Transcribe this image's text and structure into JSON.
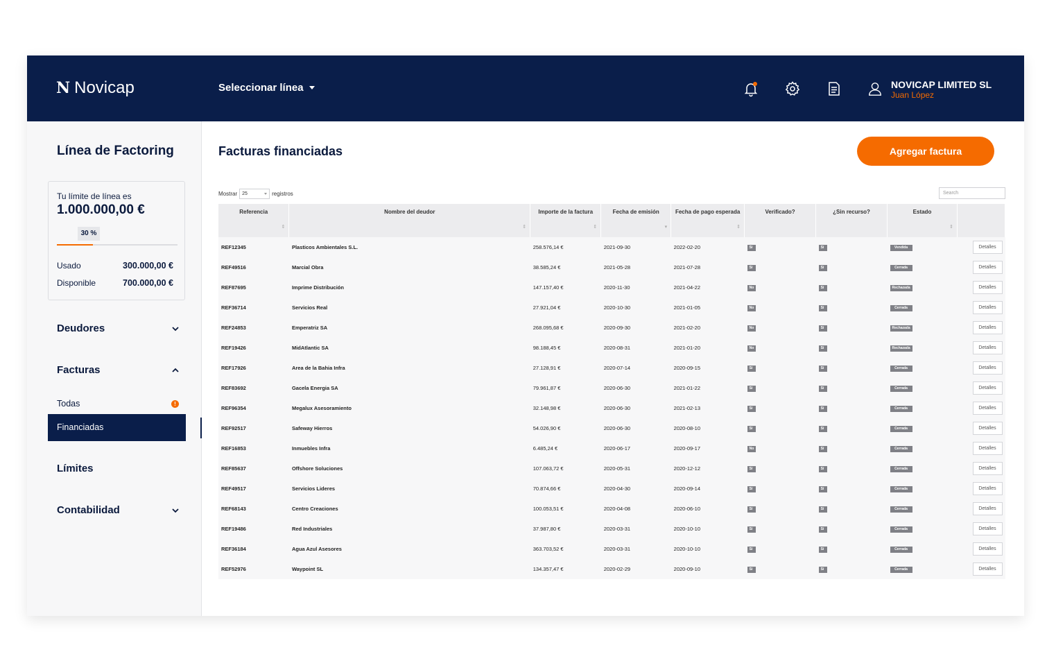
{
  "topbar": {
    "logo": "Novicap",
    "logo_mark": "N",
    "line_selector": "Seleccionar línea",
    "company": "NOVICAP LIMITED SL",
    "user_name": "Juan López"
  },
  "sidebar": {
    "title": "Línea de Factoring",
    "limit_label": "Tu límite de línea es",
    "limit_amount": "1.000.000,00 €",
    "usage_percent_label": "30 %",
    "usage_fraction": 0.3,
    "used_label": "Usado",
    "used_value": "300.000,00 €",
    "available_label": "Disponible",
    "available_value": "700.000,00 €",
    "nav": {
      "deudores": "Deudores",
      "facturas": "Facturas",
      "todas": "Todas",
      "todas_badge": "!",
      "financiadas": "Financiadas",
      "limites": "Límites",
      "contabilidad": "Contabilidad"
    }
  },
  "main": {
    "title": "Facturas financiadas",
    "add_button": "Agregar factura",
    "show_prefix": "Mostrar",
    "show_value": "25",
    "show_suffix": "registros",
    "search_placeholder": "Search",
    "columns": [
      "Referencia",
      "Nombre del deudor",
      "Importe de la factura",
      "Fecha de emisión",
      "Fecha de pago esperada",
      "Verificado?",
      "¿Sin recurso?",
      "Estado",
      ""
    ],
    "details_label": "Detalles",
    "rows": [
      {
        "ref": "REF12345",
        "deudor": "Plasticos Ambientales S.L.",
        "importe": "258.576,14 €",
        "emision": "2021-09-30",
        "pago": "2022-02-20",
        "verificado": "Sí",
        "recurso": "Sí",
        "estado": "Vendida"
      },
      {
        "ref": "REF49516",
        "deudor": "Marcial Obra",
        "importe": "38.585,24 €",
        "emision": "2021-05-28",
        "pago": "2021-07-28",
        "verificado": "Sí",
        "recurso": "Sí",
        "estado": "Cerrada"
      },
      {
        "ref": "REF87695",
        "deudor": "Imprime Distribución",
        "importe": "147.157,40 €",
        "emision": "2020-11-30",
        "pago": "2021-04-22",
        "verificado": "No",
        "recurso": "Sí",
        "estado": "Rechazada"
      },
      {
        "ref": "REF36714",
        "deudor": "Servicios Real",
        "importe": "27.921,04 €",
        "emision": "2020-10-30",
        "pago": "2021-01-05",
        "verificado": "No",
        "recurso": "Sí",
        "estado": "Cerrada"
      },
      {
        "ref": "REF24853",
        "deudor": "Emperatriz SA",
        "importe": "268.095,68 €",
        "emision": "2020-09-30",
        "pago": "2021-02-20",
        "verificado": "No",
        "recurso": "Sí",
        "estado": "Rechazada"
      },
      {
        "ref": "REF19426",
        "deudor": "MidAtlantic SA",
        "importe": "98.188,45 €",
        "emision": "2020-08-31",
        "pago": "2021-01-20",
        "verificado": "No",
        "recurso": "Sí",
        "estado": "Rechazada"
      },
      {
        "ref": "REF17926",
        "deudor": "Area de la Bahia Infra",
        "importe": "27.128,91 €",
        "emision": "2020-07-14",
        "pago": "2020-09-15",
        "verificado": "Sí",
        "recurso": "Sí",
        "estado": "Cerrada"
      },
      {
        "ref": "REF83692",
        "deudor": "Gacela Energia SA",
        "importe": "79.961,87 €",
        "emision": "2020-06-30",
        "pago": "2021-01-22",
        "verificado": "Sí",
        "recurso": "Sí",
        "estado": "Cerrada"
      },
      {
        "ref": "REF96354",
        "deudor": "Megalux Asesoramiento",
        "importe": "32.148,98 €",
        "emision": "2020-06-30",
        "pago": "2021-02-13",
        "verificado": "Sí",
        "recurso": "Sí",
        "estado": "Cerrada"
      },
      {
        "ref": "REF92517",
        "deudor": "Safeway Hierros",
        "importe": "54.026,90 €",
        "emision": "2020-06-30",
        "pago": "2020-08-10",
        "verificado": "Sí",
        "recurso": "Sí",
        "estado": "Cerrada"
      },
      {
        "ref": "REF16853",
        "deudor": "Inmuebles Infra",
        "importe": "6.485,24 €",
        "emision": "2020-06-17",
        "pago": "2020-09-17",
        "verificado": "No",
        "recurso": "Sí",
        "estado": "Cerrada"
      },
      {
        "ref": "REF85637",
        "deudor": "Offshore Soluciones",
        "importe": "107.063,72 €",
        "emision": "2020-05-31",
        "pago": "2020-12-12",
        "verificado": "Sí",
        "recurso": "Sí",
        "estado": "Cerrada"
      },
      {
        "ref": "REF49517",
        "deudor": "Servicios Lideres",
        "importe": "70.874,66 €",
        "emision": "2020-04-30",
        "pago": "2020-09-14",
        "verificado": "Sí",
        "recurso": "Sí",
        "estado": "Cerrada"
      },
      {
        "ref": "REF68143",
        "deudor": "Centro Creaciones",
        "importe": "100.053,51 €",
        "emision": "2020-04-08",
        "pago": "2020-06-10",
        "verificado": "Sí",
        "recurso": "Sí",
        "estado": "Cerrada"
      },
      {
        "ref": "REF19486",
        "deudor": "Red Industriales",
        "importe": "37.987,80 €",
        "emision": "2020-03-31",
        "pago": "2020-10-10",
        "verificado": "Sí",
        "recurso": "Sí",
        "estado": "Cerrada"
      },
      {
        "ref": "REF36184",
        "deudor": "Agua Azul Asesores",
        "importe": "363.703,52 €",
        "emision": "2020-03-31",
        "pago": "2020-10-10",
        "verificado": "Sí",
        "recurso": "Sí",
        "estado": "Cerrada"
      },
      {
        "ref": "REF52976",
        "deudor": "Waypoint SL",
        "importe": "134.357,47 €",
        "emision": "2020-02-29",
        "pago": "2020-09-10",
        "verificado": "Sí",
        "recurso": "Sí",
        "estado": "Cerrada"
      }
    ]
  },
  "colors": {
    "navy": "#0a1e4a",
    "accent": "#f56b00",
    "tag_gray": "#7f8086"
  }
}
